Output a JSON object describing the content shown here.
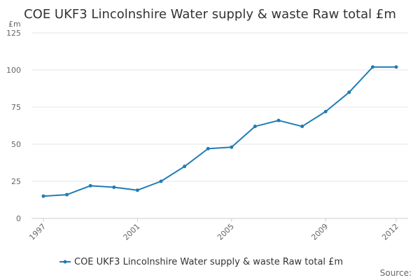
{
  "chart_data": {
    "type": "line",
    "title": "COE UKF3 Lincolnshire Water supply & waste Raw total £m",
    "ylabel": "£m",
    "xlabel": "",
    "ylim": [
      0,
      125
    ],
    "yticks": [
      0,
      25,
      50,
      75,
      100,
      125
    ],
    "x": [
      1997,
      1998,
      1999,
      2000,
      2001,
      2002,
      2003,
      2004,
      2005,
      2006,
      2007,
      2008,
      2009,
      2010,
      2011,
      2012
    ],
    "xtick_labels": [
      1997,
      2001,
      2005,
      2009,
      2012
    ],
    "series": [
      {
        "name": "COE UKF3 Lincolnshire Water supply & waste Raw total £m",
        "values": [
          15,
          16,
          22,
          21,
          19,
          25,
          35,
          47,
          48,
          62,
          66,
          62,
          72,
          85,
          102,
          102
        ],
        "color": "#1f7cb7"
      }
    ],
    "legend_position": "bottom-center",
    "grid": true,
    "source_label": "Source:"
  },
  "colors": {
    "series": "#1f7cb7",
    "grid": "#e6e6e6",
    "axis": "#cccccc",
    "text": "#333333",
    "muted": "#666666"
  }
}
